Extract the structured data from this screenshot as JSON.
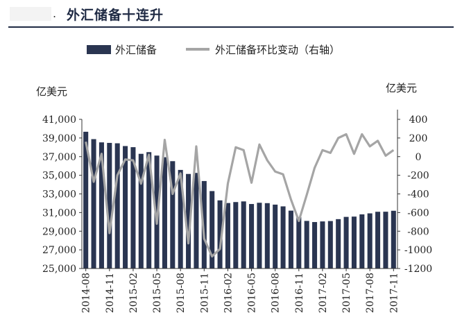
{
  "header": {
    "dot": ".",
    "title": "外汇储备十连升"
  },
  "colors": {
    "bar": "#2a3551",
    "line": "#a5a5a5",
    "axis": "#333333",
    "title_rule": "#1f2a44"
  },
  "chart_data": {
    "type": "bar",
    "categories": [
      "2014-08",
      "2014-09",
      "2014-10",
      "2014-11",
      "2014-12",
      "2015-01",
      "2015-02",
      "2015-03",
      "2015-04",
      "2015-05",
      "2015-06",
      "2015-07",
      "2015-08",
      "2015-09",
      "2015-10",
      "2015-11",
      "2015-12",
      "2016-01",
      "2016-02",
      "2016-03",
      "2016-04",
      "2016-05",
      "2016-06",
      "2016-07",
      "2016-08",
      "2016-09",
      "2016-10",
      "2016-11",
      "2016-12",
      "2017-01",
      "2017-02",
      "2017-03",
      "2017-04",
      "2017-05",
      "2017-06",
      "2017-07",
      "2017-08",
      "2017-09",
      "2017-10",
      "2017-11"
    ],
    "x_tick_labels": [
      "2014-08",
      "2014-11",
      "2015-02",
      "2015-05",
      "2015-08",
      "2015-11",
      "2016-02",
      "2016-05",
      "2016-08",
      "2016-11",
      "2017-02",
      "2017-05",
      "2017-08",
      "2017-11"
    ],
    "series": [
      {
        "name": "外汇储备",
        "type": "bar",
        "axis": "left",
        "values": [
          39668,
          38877,
          38529,
          38473,
          38430,
          38134,
          38014,
          37301,
          37481,
          37111,
          36938,
          36513,
          35574,
          35141,
          35255,
          34383,
          33304,
          32309,
          32023,
          32126,
          32197,
          31917,
          32052,
          32011,
          31852,
          31664,
          31206,
          30516,
          30105,
          29982,
          30051,
          30091,
          30295,
          30536,
          30568,
          30807,
          30915,
          31085,
          31092,
          31193
        ]
      },
      {
        "name": "外汇储备环比变动（右轴）",
        "type": "line",
        "axis": "right",
        "values": [
          160,
          -270,
          30,
          -820,
          -200,
          -30,
          -40,
          -290,
          20,
          -720,
          180,
          -400,
          -180,
          -930,
          110,
          -880,
          -1070,
          -990,
          -290,
          100,
          70,
          -280,
          130,
          -40,
          -160,
          -190,
          -460,
          -690,
          -410,
          -120,
          70,
          40,
          200,
          240,
          30,
          240,
          110,
          170,
          10,
          70
        ]
      }
    ],
    "left_axis": {
      "unit": "亿美元",
      "ylim": [
        25000,
        41000
      ],
      "ticks": [
        "25,000",
        "27,000",
        "29,000",
        "31,000",
        "33,000",
        "35,000",
        "37,000",
        "39,000",
        "41,000"
      ]
    },
    "right_axis": {
      "unit": "亿美元",
      "ylim": [
        -1200,
        400
      ],
      "ticks": [
        "-1200",
        "-1000",
        "-800",
        "-600",
        "-400",
        "-200",
        "0",
        "200",
        "400"
      ]
    },
    "legend": {
      "position": "top"
    }
  }
}
